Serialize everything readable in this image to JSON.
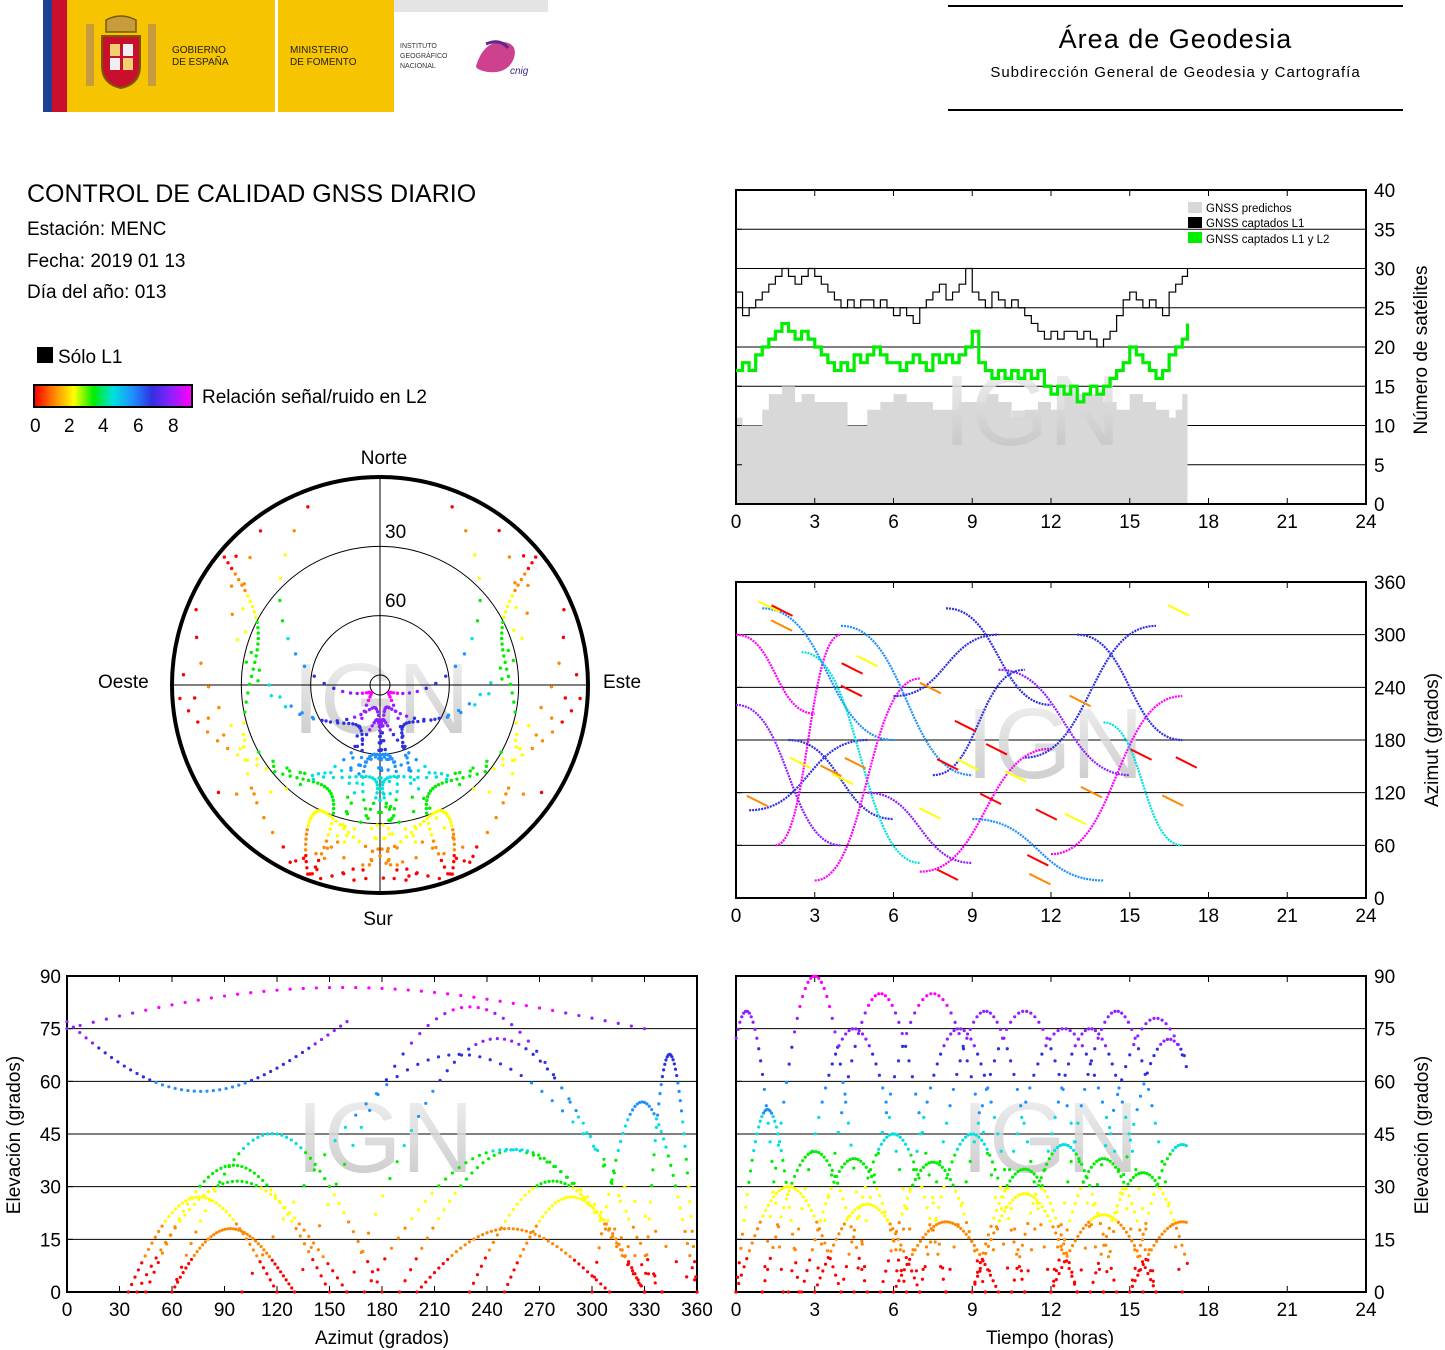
{
  "header": {
    "gob_line1": "GOBIERNO",
    "gob_line2": "DE ESPAÑA",
    "min_line1": "MINISTERIO",
    "min_line2": "DE FOMENTO",
    "ign_line1": "INSTITUTO",
    "ign_line2": "GEOGRÁFICO",
    "ign_line3": "NACIONAL",
    "cnig": "cnig",
    "area_title": "Área de Geodesia",
    "area_subtitle": "Subdirección General de Geodesia y Cartografía"
  },
  "info": {
    "title": "CONTROL DE CALIDAD GNSS DIARIO",
    "station": "Estación: MENC",
    "date": "Fecha: 2019 01 13",
    "doy": "Día del año: 013",
    "legend_l1": "Sólo L1",
    "snr_label": "Relación señal/ruido en L2",
    "snr_ticks": [
      "0",
      "2",
      "4",
      "6",
      "8"
    ]
  },
  "watermark": "IGN",
  "colors": {
    "predicted": "#d8d8d8",
    "l1": "#000000",
    "l1l2": "#00ee00",
    "snr_scale": [
      "#ff0000",
      "#ff8800",
      "#ffff00",
      "#00ee00",
      "#00e0e0",
      "#2090ff",
      "#3030e0",
      "#9020ff",
      "#ff00ff"
    ]
  },
  "chart_data": [
    {
      "id": "satellite-count",
      "type": "line",
      "xlabel": "",
      "ylabel": "Número de satélites",
      "xlim": [
        0,
        24
      ],
      "ylim": [
        0,
        40
      ],
      "xticks": [
        "0",
        "3",
        "6",
        "9",
        "12",
        "15",
        "18",
        "21",
        "24"
      ],
      "yticks": [
        "0",
        "5",
        "10",
        "15",
        "20",
        "25",
        "30",
        "35",
        "40"
      ],
      "grid": "horizontal",
      "legend_position": "top-right",
      "legend": [
        "GNSS predichos",
        "GNSS captados L1",
        "GNSS captados L1 y L2"
      ],
      "series": [
        {
          "name": "GNSS predichos",
          "kind": "area",
          "x": [
            0,
            0.25,
            1,
            1.25,
            1.75,
            2.25,
            2.5,
            3,
            3.5,
            4,
            4.25,
            5,
            5.5,
            6,
            6.5,
            7,
            7.5,
            8,
            8.5,
            9,
            9.5,
            10,
            10.5,
            11,
            11.5,
            12,
            12.5,
            13,
            13.5,
            14,
            14.5,
            15,
            15.5,
            16,
            16.5,
            16.75,
            17,
            17.2
          ],
          "y": [
            11,
            10,
            12,
            14,
            15,
            13,
            14,
            13,
            13,
            13,
            10,
            12,
            13,
            14,
            13,
            13,
            12,
            12,
            13,
            13,
            14,
            13,
            11,
            12,
            13,
            12,
            14,
            14,
            14,
            13,
            12,
            14,
            13,
            12,
            11,
            12,
            14,
            15
          ]
        },
        {
          "name": "GNSS captados L1",
          "kind": "step",
          "x": [
            0,
            0.25,
            0.5,
            0.75,
            1,
            1.25,
            1.5,
            1.75,
            2,
            2.25,
            2.5,
            2.75,
            3,
            3.25,
            3.5,
            3.75,
            4,
            4.25,
            4.5,
            4.75,
            5,
            5.25,
            5.5,
            5.75,
            6,
            6.25,
            6.5,
            6.75,
            7,
            7.25,
            7.5,
            7.75,
            8,
            8.25,
            8.5,
            8.75,
            9,
            9.25,
            9.5,
            9.75,
            10,
            10.25,
            10.5,
            10.75,
            11,
            11.25,
            11.5,
            11.75,
            12,
            12.25,
            12.5,
            12.75,
            13,
            13.25,
            13.5,
            13.75,
            14,
            14.25,
            14.5,
            14.75,
            15,
            15.25,
            15.5,
            15.75,
            16,
            16.25,
            16.5,
            16.75,
            17,
            17.2
          ],
          "y": [
            27,
            24,
            25,
            26,
            27,
            28,
            29,
            30,
            29,
            28,
            29,
            30,
            29,
            28,
            27,
            26,
            25,
            26,
            25,
            26,
            26,
            25,
            26,
            25,
            24,
            25,
            24,
            23,
            25,
            26,
            27,
            28,
            26,
            27,
            28,
            30,
            27,
            26,
            25,
            27,
            26,
            25,
            26,
            25,
            24,
            23,
            22,
            21,
            22,
            21,
            22,
            22,
            21,
            22,
            21,
            20,
            21,
            22,
            24,
            26,
            27,
            26,
            25,
            26,
            25,
            24,
            27,
            28,
            29,
            30
          ]
        },
        {
          "name": "GNSS captados L1 y L2",
          "kind": "step",
          "x": [
            0,
            0.25,
            0.5,
            0.75,
            1,
            1.25,
            1.5,
            1.75,
            2,
            2.25,
            2.5,
            2.75,
            3,
            3.25,
            3.5,
            3.75,
            4,
            4.25,
            4.5,
            4.75,
            5,
            5.25,
            5.5,
            5.75,
            6,
            6.25,
            6.5,
            6.75,
            7,
            7.25,
            7.5,
            7.75,
            8,
            8.25,
            8.5,
            8.75,
            9,
            9.25,
            9.5,
            9.75,
            10,
            10.25,
            10.5,
            10.75,
            11,
            11.25,
            11.5,
            11.75,
            12,
            12.25,
            12.5,
            12.75,
            13,
            13.25,
            13.5,
            13.75,
            14,
            14.25,
            14.5,
            14.75,
            15,
            15.25,
            15.5,
            15.75,
            16,
            16.25,
            16.5,
            16.75,
            17,
            17.2
          ],
          "y": [
            17,
            18,
            17,
            19,
            20,
            21,
            22,
            23,
            22,
            21,
            22,
            21,
            20,
            19,
            18,
            17,
            18,
            17,
            19,
            18,
            19,
            20,
            19,
            18,
            18,
            17,
            18,
            19,
            18,
            17,
            19,
            18,
            19,
            18,
            19,
            20,
            22,
            18,
            17,
            16,
            17,
            16,
            17,
            16,
            17,
            16,
            17,
            15,
            14,
            15,
            14,
            15,
            13,
            14,
            15,
            14,
            15,
            16,
            17,
            18,
            20,
            19,
            18,
            17,
            16,
            17,
            19,
            20,
            21,
            23
          ]
        }
      ]
    },
    {
      "id": "skyplot",
      "type": "scatter",
      "projection": "polar",
      "title": "",
      "direction_labels": {
        "north": "Norte",
        "south": "Sur",
        "east": "Este",
        "west": "Oeste"
      },
      "ring_labels": [
        "30",
        "60"
      ],
      "note": "Satellite tracks colored by L2 SNR"
    },
    {
      "id": "azimuth-vs-time",
      "type": "scatter",
      "xlabel": "",
      "ylabel": "Azimut (grados)",
      "xlim": [
        0,
        24
      ],
      "ylim": [
        0,
        360
      ],
      "xticks": [
        "0",
        "3",
        "6",
        "9",
        "12",
        "15",
        "18",
        "21",
        "24"
      ],
      "yticks": [
        "0",
        "60",
        "120",
        "180",
        "240",
        "300",
        "360"
      ],
      "grid": "horizontal"
    },
    {
      "id": "elevation-vs-azimuth",
      "type": "scatter",
      "xlabel": "Azimut (grados)",
      "ylabel": "Elevación (grados)",
      "xlim": [
        0,
        360
      ],
      "ylim": [
        0,
        90
      ],
      "xticks": [
        "0",
        "30",
        "60",
        "90",
        "120",
        "150",
        "180",
        "210",
        "240",
        "270",
        "300",
        "330",
        "360"
      ],
      "yticks": [
        "0",
        "15",
        "30",
        "45",
        "60",
        "75",
        "90"
      ],
      "grid": "horizontal"
    },
    {
      "id": "elevation-vs-time",
      "type": "scatter",
      "xlabel": "Tiempo (horas)",
      "ylabel": "Elevación (grados)",
      "xlim": [
        0,
        24
      ],
      "ylim": [
        0,
        90
      ],
      "xticks": [
        "0",
        "3",
        "6",
        "9",
        "12",
        "15",
        "18",
        "21",
        "24"
      ],
      "yticks": [
        "0",
        "15",
        "30",
        "45",
        "60",
        "75",
        "90"
      ],
      "grid": "horizontal"
    }
  ]
}
